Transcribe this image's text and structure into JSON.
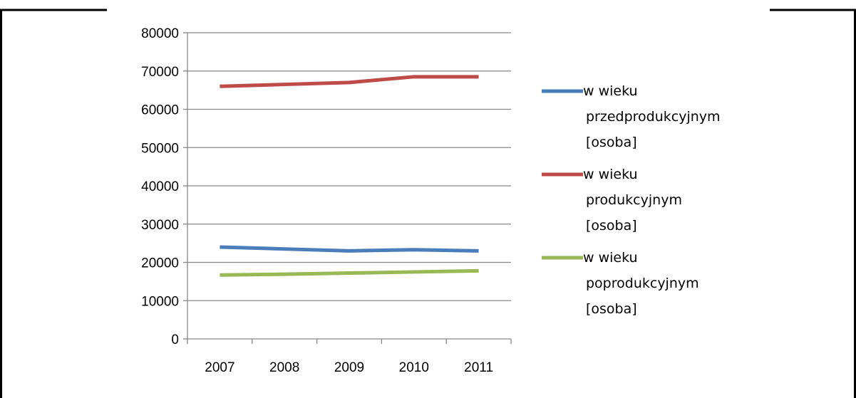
{
  "chart_data": {
    "type": "line",
    "categories": [
      "2007",
      "2008",
      "2009",
      "2010",
      "2011"
    ],
    "ylim": [
      0,
      80000
    ],
    "y_ticks": [
      0,
      10000,
      20000,
      30000,
      40000,
      50000,
      60000,
      70000,
      80000
    ],
    "y_tick_labels": [
      "0",
      "10000",
      "20000",
      "30000",
      "40000",
      "50000",
      "60000",
      "70000",
      "80000"
    ],
    "grid": "horizontal",
    "legend_position": "right",
    "series": [
      {
        "name": "w wieku przedprodukcyjnym [osoba]",
        "legend_lines": [
          "w wieku",
          "przedprodukcyjnym",
          "[osoba]"
        ],
        "color": "#4a7ebb",
        "values": [
          24000,
          23500,
          23000,
          23300,
          23000
        ]
      },
      {
        "name": "w wieku produkcyjnym [osoba]",
        "legend_lines": [
          "w wieku",
          "produkcyjnym",
          "[osoba]"
        ],
        "color": "#be4b48",
        "values": [
          66000,
          66500,
          67000,
          68500,
          68500
        ]
      },
      {
        "name": "w wieku poprodukcyjnym [osoba]",
        "legend_lines": [
          "w wieku",
          "poprodukcyjnym",
          "[osoba]"
        ],
        "color": "#98b954",
        "values": [
          16700,
          16900,
          17200,
          17500,
          17800
        ]
      }
    ]
  }
}
